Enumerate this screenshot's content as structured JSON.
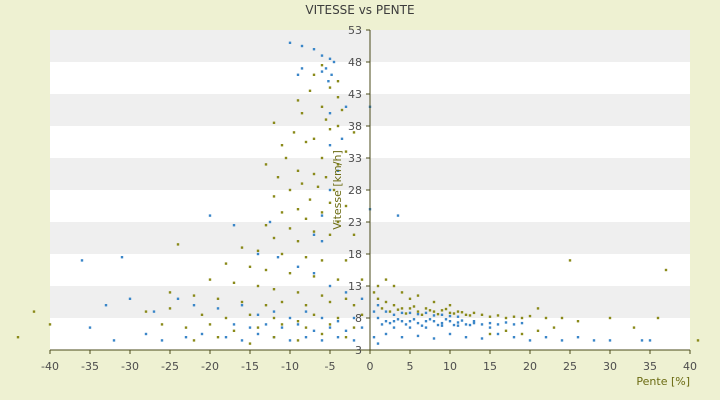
{
  "chart_data": {
    "type": "scatter",
    "title": "VITESSE vs PENTE",
    "xlabel": "Pente [%]",
    "ylabel": "Vitesse [km/h]",
    "xlim": [
      -40,
      40
    ],
    "ylim": [
      3,
      53
    ],
    "xticks": [
      "-40",
      "-35",
      "-30",
      "-25",
      "-20",
      "-15",
      "-10",
      "-5",
      "0",
      "5",
      "10",
      "15",
      "20",
      "25",
      "30",
      "35",
      "40"
    ],
    "yticks": [
      "3",
      "8",
      "13",
      "18",
      "23",
      "28",
      "33",
      "38",
      "43",
      "48",
      "53"
    ],
    "grid": "horizontal alternating bands",
    "legend": "none",
    "colors": {
      "series_blue": "#3a86c8",
      "series_olive": "#8a8a1a",
      "band": "#efefef",
      "plot_bg": "#ffffff",
      "axis": "#4a4a1a"
    },
    "series": [
      {
        "color": "#3a86c8",
        "points": [
          [
            -10,
            51
          ],
          [
            -8.5,
            50.5
          ],
          [
            -7,
            50
          ],
          [
            -6,
            49
          ],
          [
            -5,
            48.5
          ],
          [
            -4.5,
            48
          ],
          [
            -5.5,
            47
          ],
          [
            -8.5,
            47
          ],
          [
            -6,
            46.5
          ],
          [
            -9,
            46
          ],
          [
            -4.8,
            46
          ],
          [
            -5.2,
            45
          ],
          [
            -3,
            41
          ],
          [
            0,
            41
          ],
          [
            -5,
            40
          ],
          [
            -3.5,
            36
          ],
          [
            -5,
            35
          ],
          [
            -4,
            31
          ],
          [
            -5,
            28
          ],
          [
            0,
            25
          ],
          [
            3.5,
            24
          ],
          [
            -6,
            24
          ],
          [
            -7,
            21
          ],
          [
            -6,
            20
          ],
          [
            -36,
            17
          ],
          [
            -31,
            17.5
          ],
          [
            -20,
            24
          ],
          [
            -17,
            22.5
          ],
          [
            -12.5,
            23
          ],
          [
            -14,
            18
          ],
          [
            -11.5,
            17.5
          ],
          [
            -9,
            16
          ],
          [
            -7,
            15
          ],
          [
            -5,
            13
          ],
          [
            -3,
            12
          ],
          [
            -1,
            11
          ],
          [
            -30,
            11
          ],
          [
            -33,
            10
          ],
          [
            -27,
            9
          ],
          [
            -24,
            11
          ],
          [
            -22,
            10
          ],
          [
            -19,
            9.5
          ],
          [
            -16,
            10
          ],
          [
            -14,
            8.5
          ],
          [
            -12,
            9
          ],
          [
            -10,
            8
          ],
          [
            -8,
            9
          ],
          [
            -6,
            8
          ],
          [
            -4,
            7.5
          ],
          [
            -2,
            8
          ],
          [
            -35,
            6.5
          ],
          [
            -32,
            4.5
          ],
          [
            -28,
            5.5
          ],
          [
            -26,
            4.5
          ],
          [
            -23,
            5
          ],
          [
            -21,
            5.5
          ],
          [
            -18,
            5
          ],
          [
            -16,
            4.5
          ],
          [
            -14,
            5.5
          ],
          [
            -12,
            5
          ],
          [
            -10,
            4.5
          ],
          [
            -8,
            5
          ],
          [
            -6,
            4.5
          ],
          [
            -4,
            5
          ],
          [
            -2,
            4.5
          ],
          [
            -7,
            6
          ],
          [
            -5,
            6.5
          ],
          [
            -3,
            6
          ],
          [
            -1,
            6.5
          ],
          [
            -9,
            7
          ],
          [
            -11,
            6.5
          ],
          [
            -13,
            7
          ],
          [
            -15,
            6.5
          ],
          [
            -17,
            7
          ],
          [
            1,
            8
          ],
          [
            2,
            7.5
          ],
          [
            3,
            7.5
          ],
          [
            4,
            7.5
          ],
          [
            5,
            7.5
          ],
          [
            6,
            7.2
          ],
          [
            7,
            7.5
          ],
          [
            8,
            7.5
          ],
          [
            9,
            7.2
          ],
          [
            10,
            7.5
          ],
          [
            11,
            7.3
          ],
          [
            12,
            7
          ],
          [
            13,
            7.2
          ],
          [
            14,
            7
          ],
          [
            15,
            7.2
          ],
          [
            16,
            7
          ],
          [
            17,
            7.3
          ],
          [
            18,
            7
          ],
          [
            19,
            7.2
          ],
          [
            1.5,
            7
          ],
          [
            2.5,
            7.2
          ],
          [
            3.5,
            7.8
          ],
          [
            4.5,
            7
          ],
          [
            5.5,
            7.8
          ],
          [
            6.5,
            6.8
          ],
          [
            7.5,
            7.8
          ],
          [
            8.5,
            6.9
          ],
          [
            9.5,
            7.8
          ],
          [
            10.5,
            6.9
          ],
          [
            11.5,
            7.6
          ],
          [
            12.5,
            6.9
          ],
          [
            3,
            6.5
          ],
          [
            5,
            6.5
          ],
          [
            7,
            6.5
          ],
          [
            9,
            6.8
          ],
          [
            11,
            6.8
          ],
          [
            13,
            7.5
          ],
          [
            15,
            6.5
          ],
          [
            2,
            5.5
          ],
          [
            4,
            5
          ],
          [
            6,
            5.2
          ],
          [
            8,
            4.8
          ],
          [
            10,
            5.5
          ],
          [
            12,
            5
          ],
          [
            14,
            4.8
          ],
          [
            16,
            5.5
          ],
          [
            18,
            5
          ],
          [
            20,
            4.5
          ],
          [
            22,
            5
          ],
          [
            24,
            4.5
          ],
          [
            26,
            5
          ],
          [
            28,
            4.5
          ],
          [
            30,
            4.5
          ],
          [
            34,
            4.5
          ],
          [
            35,
            4.5
          ],
          [
            1,
            4
          ],
          [
            0.5,
            5
          ],
          [
            0.5,
            9
          ],
          [
            1,
            10
          ],
          [
            2,
            9
          ],
          [
            3,
            8.5
          ],
          [
            4,
            8.8
          ],
          [
            5,
            8.8
          ],
          [
            6,
            8.6
          ],
          [
            7,
            8.8
          ],
          [
            8,
            8.4
          ],
          [
            9,
            8.5
          ],
          [
            10,
            8.3
          ],
          [
            11,
            8.2
          ]
        ]
      },
      {
        "color": "#8a8a1a",
        "points": [
          [
            -6,
            47.5
          ],
          [
            -7,
            46
          ],
          [
            -4,
            45
          ],
          [
            -5,
            44
          ],
          [
            -7.5,
            43.5
          ],
          [
            -4,
            42.5
          ],
          [
            -9,
            42
          ],
          [
            -6,
            41
          ],
          [
            -3.5,
            40.5
          ],
          [
            -8.5,
            40
          ],
          [
            -5.5,
            39
          ],
          [
            -12,
            38.5
          ],
          [
            -9.5,
            37
          ],
          [
            -4,
            38
          ],
          [
            -2,
            37
          ],
          [
            -7,
            36
          ],
          [
            -5,
            37.5
          ],
          [
            -11,
            35
          ],
          [
            -8,
            35.5
          ],
          [
            -3,
            34
          ],
          [
            -10.5,
            33
          ],
          [
            -6,
            33
          ],
          [
            -4,
            32
          ],
          [
            -13,
            32
          ],
          [
            -9,
            31
          ],
          [
            -7,
            30.5
          ],
          [
            -5.5,
            30
          ],
          [
            -11.5,
            30
          ],
          [
            -8.5,
            29
          ],
          [
            -6.5,
            28.5
          ],
          [
            -4.5,
            28
          ],
          [
            -10,
            28
          ],
          [
            -12,
            27
          ],
          [
            -7.5,
            26.5
          ],
          [
            -5,
            26
          ],
          [
            -3,
            25.5
          ],
          [
            -9,
            25
          ],
          [
            -11,
            24.5
          ],
          [
            -6,
            24.5
          ],
          [
            -8,
            23.5
          ],
          [
            -4,
            23
          ],
          [
            -13,
            22.5
          ],
          [
            -10,
            22
          ],
          [
            -7,
            21.5
          ],
          [
            -5,
            21
          ],
          [
            -2,
            21
          ],
          [
            -12,
            20.5
          ],
          [
            -9,
            20
          ],
          [
            -24,
            19.5
          ],
          [
            -16,
            19
          ],
          [
            -14,
            18.5
          ],
          [
            -11,
            18
          ],
          [
            -8,
            17.5
          ],
          [
            -6,
            17
          ],
          [
            -3,
            17
          ],
          [
            -18,
            16.5
          ],
          [
            -15,
            16
          ],
          [
            -13,
            15.5
          ],
          [
            -10,
            15
          ],
          [
            -7,
            14.5
          ],
          [
            -4,
            14
          ],
          [
            -1,
            14
          ],
          [
            -20,
            14
          ],
          [
            -17,
            13.5
          ],
          [
            -14,
            13
          ],
          [
            -12,
            12.5
          ],
          [
            -9,
            12
          ],
          [
            -6,
            11.5
          ],
          [
            -3,
            11
          ],
          [
            -25,
            12
          ],
          [
            -22,
            11.5
          ],
          [
            -19,
            11
          ],
          [
            -16,
            10.5
          ],
          [
            -13,
            10
          ],
          [
            -11,
            10.5
          ],
          [
            -8,
            10
          ],
          [
            -5,
            10.5
          ],
          [
            -2,
            10
          ],
          [
            -28,
            9
          ],
          [
            -25,
            9.5
          ],
          [
            -21,
            8.5
          ],
          [
            -18,
            8
          ],
          [
            -15,
            8.5
          ],
          [
            -12,
            8
          ],
          [
            -9,
            7.5
          ],
          [
            -7,
            8.5
          ],
          [
            -4,
            8
          ],
          [
            -1,
            8.5
          ],
          [
            -26,
            7
          ],
          [
            -23,
            6.5
          ],
          [
            -20,
            7
          ],
          [
            -17,
            6
          ],
          [
            -14,
            6.5
          ],
          [
            -11,
            7
          ],
          [
            -8,
            6.5
          ],
          [
            -5,
            7
          ],
          [
            -2,
            6.5
          ],
          [
            -40,
            7
          ],
          [
            -42,
            9
          ],
          [
            -44,
            5
          ],
          [
            -22,
            4.5
          ],
          [
            -19,
            5
          ],
          [
            -15,
            4
          ],
          [
            -12,
            5
          ],
          [
            -9,
            4.5
          ],
          [
            -6,
            5.5
          ],
          [
            -3,
            5
          ],
          [
            1,
            11
          ],
          [
            2,
            10.5
          ],
          [
            3,
            10
          ],
          [
            4,
            9.5
          ],
          [
            5,
            9.5
          ],
          [
            6,
            9
          ],
          [
            7,
            9.5
          ],
          [
            8,
            9
          ],
          [
            9,
            9.2
          ],
          [
            10,
            8.8
          ],
          [
            11,
            9
          ],
          [
            12,
            8.5
          ],
          [
            13,
            8.8
          ],
          [
            14,
            8.5
          ],
          [
            15,
            8.2
          ],
          [
            16,
            8.4
          ],
          [
            17,
            8
          ],
          [
            18,
            8.2
          ],
          [
            19,
            8
          ],
          [
            20,
            8.3
          ],
          [
            1.5,
            9.5
          ],
          [
            2.5,
            9
          ],
          [
            3.5,
            9.3
          ],
          [
            4.5,
            8.7
          ],
          [
            5.5,
            9.8
          ],
          [
            6.5,
            8.5
          ],
          [
            7.5,
            9.2
          ],
          [
            8.5,
            8.6
          ],
          [
            9.5,
            9.4
          ],
          [
            10.5,
            8.7
          ],
          [
            11.5,
            8.9
          ],
          [
            12.5,
            8.4
          ],
          [
            21,
            9.5
          ],
          [
            22,
            8
          ],
          [
            24,
            8
          ],
          [
            25,
            17
          ],
          [
            30,
            8
          ],
          [
            36,
            8
          ],
          [
            37,
            15.5
          ],
          [
            41,
            4.5
          ],
          [
            33,
            6.5
          ],
          [
            26,
            7.5
          ],
          [
            23,
            6.5
          ],
          [
            21,
            6
          ],
          [
            19,
            5.5
          ],
          [
            17,
            6
          ],
          [
            15,
            5.5
          ],
          [
            0.5,
            12
          ],
          [
            1,
            13
          ],
          [
            2,
            14
          ],
          [
            3,
            13
          ],
          [
            4,
            12
          ],
          [
            5,
            11
          ],
          [
            6,
            11.5
          ],
          [
            8,
            10.5
          ],
          [
            10,
            10
          ]
        ]
      }
    ]
  }
}
